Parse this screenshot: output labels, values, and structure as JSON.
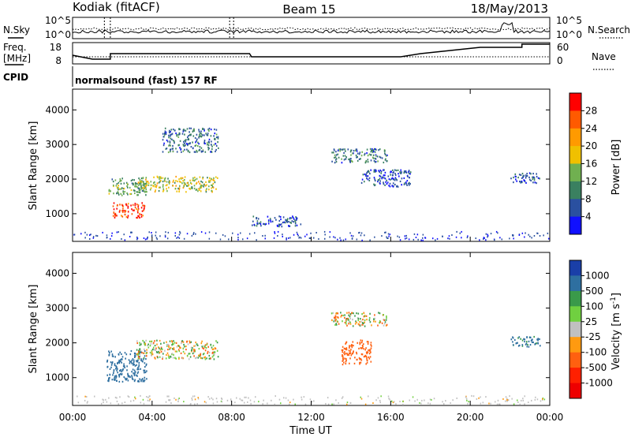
{
  "header": {
    "station": "Kodiak (fitACF)",
    "beam": "Beam 15",
    "date": "18/May/2013"
  },
  "top_panels": {
    "nsky_label": "N.Sky",
    "nsky_ticks": [
      "10^5",
      "10^0"
    ],
    "nsearch_label": "N.Search",
    "nsearch_ticks": [
      "10^5",
      "10^0"
    ],
    "freq_label": "Freq.",
    "freq_unit": "[MHz]",
    "freq_ticks": [
      "18",
      "8"
    ],
    "nave_label": "Nave",
    "nave_ticks": [
      "60",
      "0"
    ],
    "cpid_label": "CPID",
    "cpid_text": "normalsound (fast) 157 RF"
  },
  "colorbars": {
    "power": {
      "label": "Power [dB]",
      "ticks": [
        "28",
        "24",
        "20",
        "16",
        "12",
        "8",
        "4"
      ],
      "colors": [
        "#ff0000",
        "#ff5a00",
        "#ff9a00",
        "#f0c000",
        "#70b050",
        "#3a8060",
        "#2a50a0",
        "#1010ff"
      ]
    },
    "velocity": {
      "label": "Velocity [m s",
      "label_sup": "-1",
      "label_end": "]",
      "ticks": [
        "1000",
        "500",
        "100",
        "25",
        "-25",
        "-100",
        "-500",
        "-1000"
      ],
      "colors": [
        "#1a3fa8",
        "#2e6fa0",
        "#3a9a4a",
        "#70d040",
        "#c0c0c0",
        "#ff9a10",
        "#ff6010",
        "#ff2000",
        "#ee0000"
      ]
    }
  },
  "chart_data": [
    {
      "type": "heatmap",
      "name": "power",
      "xlabel": "",
      "ylabel": "Slant Range [km]",
      "ylim": [
        200,
        4600
      ],
      "xlim": [
        0,
        24
      ],
      "yticks": [
        "1000",
        "2000",
        "3000",
        "4000"
      ],
      "xticks": [
        "00:00",
        "04:00",
        "08:00",
        "12:00",
        "16:00",
        "20:00",
        "00:00"
      ],
      "colorbar": "Power [dB]",
      "clim": [
        0,
        30
      ],
      "regions": [
        {
          "t": [
            1.8,
            3.7
          ],
          "r": [
            1550,
            2050
          ],
          "v": 12
        },
        {
          "t": [
            2.0,
            3.6
          ],
          "r": [
            900,
            1350
          ],
          "v": 28
        },
        {
          "t": [
            3.2,
            7.3
          ],
          "r": [
            1650,
            2100
          ],
          "v": 16
        },
        {
          "t": [
            4.5,
            7.3
          ],
          "r": [
            2800,
            3500
          ],
          "v": 8
        },
        {
          "t": [
            9.0,
            11.5
          ],
          "r": [
            650,
            950
          ],
          "v": 6
        },
        {
          "t": [
            13.0,
            15.8
          ],
          "r": [
            2500,
            2900
          ],
          "v": 8
        },
        {
          "t": [
            14.5,
            17.0
          ],
          "r": [
            1800,
            2300
          ],
          "v": 6
        },
        {
          "t": [
            22.0,
            23.5
          ],
          "r": [
            1900,
            2200
          ],
          "v": 6
        }
      ]
    },
    {
      "type": "heatmap",
      "name": "velocity",
      "xlabel": "Time UT",
      "ylabel": "Slant Range [km]",
      "ylim": [
        200,
        4600
      ],
      "xlim": [
        0,
        24
      ],
      "yticks": [
        "1000",
        "2000",
        "3000",
        "4000"
      ],
      "xticks": [
        "00:00",
        "04:00",
        "08:00",
        "12:00",
        "16:00",
        "20:00",
        "00:00"
      ],
      "colorbar": "Velocity [m s-1]",
      "clim": [
        -1000,
        1000
      ],
      "regions": [
        {
          "t": [
            1.7,
            3.7
          ],
          "r": [
            900,
            1800
          ],
          "v": 700
        },
        {
          "t": [
            3.2,
            7.3
          ],
          "r": [
            1550,
            2100
          ],
          "v": 0
        },
        {
          "t": [
            13.5,
            15.0
          ],
          "r": [
            1400,
            2100
          ],
          "v": -300
        },
        {
          "t": [
            13.0,
            15.8
          ],
          "r": [
            2500,
            2900
          ],
          "v": 0
        },
        {
          "t": [
            22.0,
            23.5
          ],
          "r": [
            1900,
            2200
          ],
          "v": 600
        }
      ]
    }
  ]
}
